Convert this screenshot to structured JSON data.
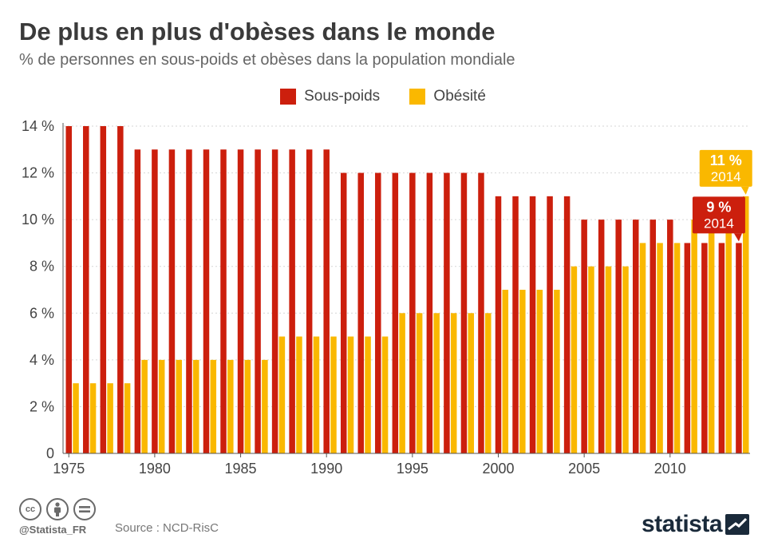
{
  "header": {
    "title": "De plus en plus d'obèses dans le monde",
    "subtitle": "% de personnes en sous-poids et obèses dans la population mondiale"
  },
  "footer": {
    "cc_icons": [
      "cc-icon",
      "by-icon",
      "nd-icon"
    ],
    "handle": "@Statista_FR",
    "source": "Source : NCD-RisC",
    "brand": "statista"
  },
  "chart_data": {
    "type": "bar",
    "x": [
      1975,
      1976,
      1977,
      1978,
      1979,
      1980,
      1981,
      1982,
      1983,
      1984,
      1985,
      1986,
      1987,
      1988,
      1989,
      1990,
      1991,
      1992,
      1993,
      1994,
      1995,
      1996,
      1997,
      1998,
      1999,
      2000,
      2001,
      2002,
      2003,
      2004,
      2005,
      2006,
      2007,
      2008,
      2009,
      2010,
      2011,
      2012,
      2013,
      2014
    ],
    "xticks": [
      1975,
      1980,
      1985,
      1990,
      1995,
      2000,
      2005,
      2010
    ],
    "series": [
      {
        "name": "Sous-poids",
        "color": "#cc1f0d",
        "values": [
          14,
          14,
          14,
          14,
          13,
          13,
          13,
          13,
          13,
          13,
          13,
          13,
          13,
          13,
          13,
          13,
          12,
          12,
          12,
          12,
          12,
          12,
          12,
          12,
          12,
          11,
          11,
          11,
          11,
          11,
          10,
          10,
          10,
          10,
          10,
          10,
          9,
          9,
          9,
          9
        ]
      },
      {
        "name": "Obésité",
        "color": "#fab800",
        "values": [
          3,
          3,
          3,
          3,
          4,
          4,
          4,
          4,
          4,
          4,
          4,
          4,
          5,
          5,
          5,
          5,
          5,
          5,
          5,
          6,
          6,
          6,
          6,
          6,
          6,
          7,
          7,
          7,
          7,
          8,
          8,
          8,
          8,
          9,
          9,
          9,
          10,
          10,
          10,
          11
        ]
      }
    ],
    "yticks": [
      0,
      2,
      4,
      6,
      8,
      10,
      12,
      14
    ],
    "ytick_labels": [
      "0",
      "2 %",
      "4 %",
      "6 %",
      "8 %",
      "10 %",
      "12 %",
      "14 %"
    ],
    "ylim": [
      0,
      14
    ],
    "grid": true,
    "legend_position": "top-center",
    "annotations": [
      {
        "series": "Obésité",
        "value_text": "11 %",
        "year_text": "2014"
      },
      {
        "series": "Sous-poids",
        "value_text": "9 %",
        "year_text": "2014"
      }
    ]
  }
}
